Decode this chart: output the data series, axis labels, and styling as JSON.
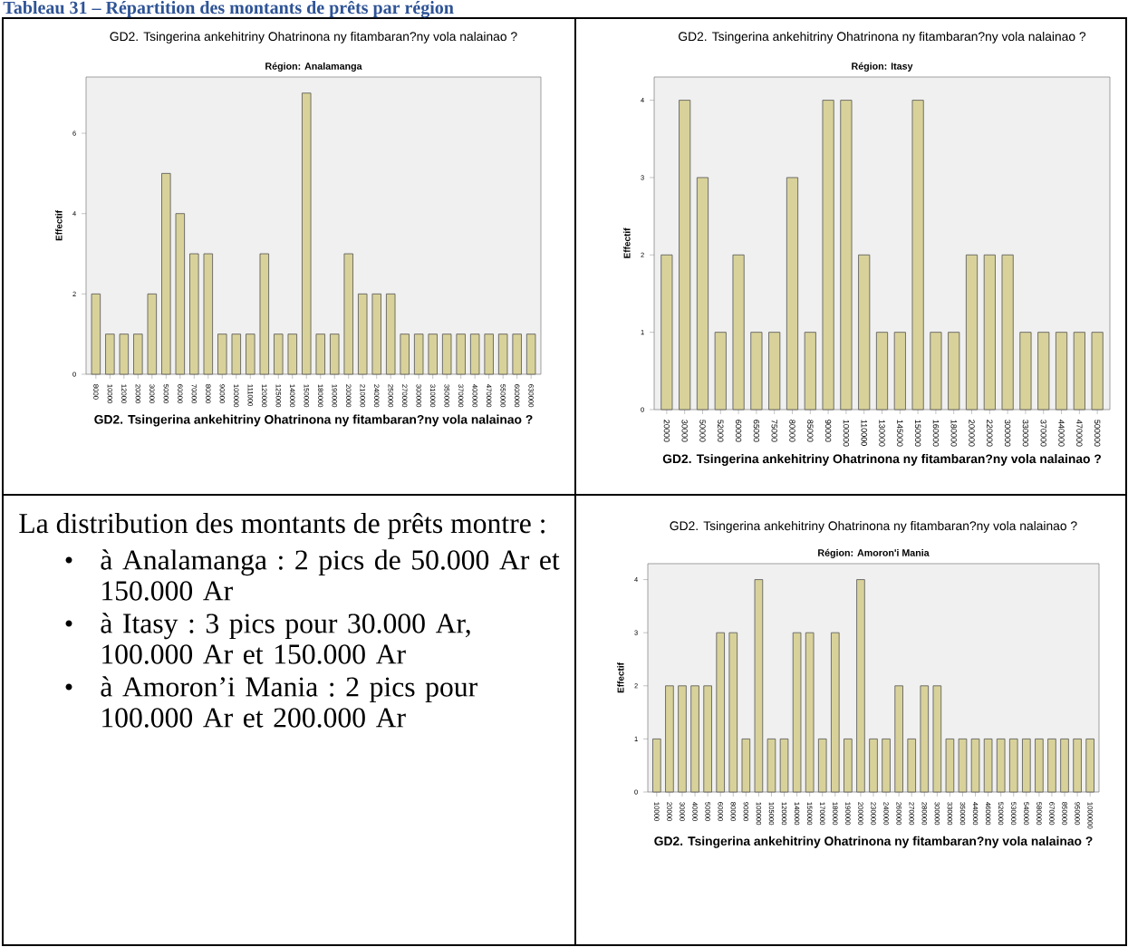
{
  "chart_data": [
    {
      "type": "other",
      "title": "Tableau 31 – Répartition des montants de prêts par région"
    },
    {
      "type": "bar",
      "title": "GD2. Tsingerina ankehitriny  Ohatrinona ny fitambaran?ny vola nalainao ?",
      "subtitle": "Région: Analamanga",
      "xlabel": "GD2. Tsingerina ankehitriny  Ohatrinona ny fitambaran?ny vola nalainao ?",
      "ylabel": "Effectif",
      "color": "#d8d29a",
      "categories": [
        "8000",
        "10000",
        "12000",
        "20000",
        "30000",
        "50000",
        "60000",
        "70000",
        "80000",
        "90000",
        "100000",
        "111000",
        "120000",
        "125000",
        "140000",
        "150000",
        "180000",
        "190000",
        "200000",
        "210000",
        "240000",
        "250000",
        "270000",
        "300000",
        "310000",
        "350000",
        "370000",
        "400000",
        "470000",
        "550000",
        "600000",
        "630000"
      ],
      "values": [
        2,
        1,
        1,
        1,
        2,
        5,
        4,
        3,
        3,
        1,
        1,
        1,
        3,
        1,
        1,
        7,
        1,
        1,
        3,
        2,
        2,
        2,
        1,
        1,
        1,
        1,
        1,
        1,
        1,
        1,
        1,
        1
      ],
      "ylim": [
        0,
        7.4
      ],
      "yticks": [
        0,
        2,
        4,
        6
      ]
    },
    {
      "type": "bar",
      "title": "GD2. Tsingerina ankehitriny  Ohatrinona ny fitambaran?ny vola nalainao ?",
      "subtitle": "Région: Itasy",
      "xlabel": "GD2. Tsingerina ankehitriny  Ohatrinona ny fitambaran?ny vola nalainao ?",
      "ylabel": "Effectif",
      "color": "#d8d29a",
      "categories": [
        "20000",
        "30000",
        "50000",
        "52000",
        "60000",
        "65000",
        "75000",
        "80000",
        "85000",
        "90000",
        "100000",
        "110000",
        "130000",
        "145000",
        "150000",
        "160000",
        "180000",
        "200000",
        "220000",
        "300000",
        "330000",
        "370000",
        "440000",
        "470000",
        "500000"
      ],
      "values": [
        2,
        4,
        3,
        1,
        2,
        1,
        1,
        3,
        1,
        4,
        4,
        2,
        1,
        1,
        4,
        1,
        1,
        2,
        2,
        2,
        1,
        1,
        1,
        1,
        1
      ],
      "ylim": [
        0,
        4.3
      ],
      "yticks": [
        0,
        1,
        2,
        3,
        4
      ]
    },
    {
      "type": "other",
      "title": "La distribution des montants de prêts montre :",
      "annotations": [
        "à Analamanga : 2 pics  de 50.000 Ar et 150.000 Ar",
        "à Itasy : 3 pics pour 30.000 Ar, 100.000 Ar et 150.000 Ar",
        "à Amoron’i Mania : 2 pics pour 100.000 Ar et 200.000 Ar"
      ]
    },
    {
      "type": "bar",
      "title": "GD2. Tsingerina ankehitriny  Ohatrinona ny fitambaran?ny vola nalainao ?",
      "subtitle": "Région: Amoron'i Mania",
      "xlabel": "GD2. Tsingerina ankehitriny  Ohatrinona ny fitambaran?ny vola nalainao ?",
      "ylabel": "Effectif",
      "color": "#d8d29a",
      "categories": [
        "10000",
        "20000",
        "30000",
        "40000",
        "50000",
        "60000",
        "80000",
        "90000",
        "100000",
        "105000",
        "120000",
        "140000",
        "150000",
        "170000",
        "180000",
        "190000",
        "200000",
        "230000",
        "240000",
        "260000",
        "270000",
        "280000",
        "300000",
        "330000",
        "350000",
        "440000",
        "460000",
        "520000",
        "530000",
        "540000",
        "580000",
        "670000",
        "850000",
        "950000",
        "1000000"
      ],
      "values": [
        1,
        2,
        2,
        2,
        2,
        3,
        3,
        1,
        4,
        1,
        1,
        3,
        3,
        1,
        3,
        1,
        4,
        1,
        1,
        2,
        1,
        2,
        2,
        1,
        1,
        1,
        1,
        1,
        1,
        1,
        1,
        1,
        1,
        1,
        1
      ],
      "ylim": [
        0,
        4.3
      ],
      "yticks": [
        0,
        1,
        2,
        3,
        4
      ]
    }
  ]
}
